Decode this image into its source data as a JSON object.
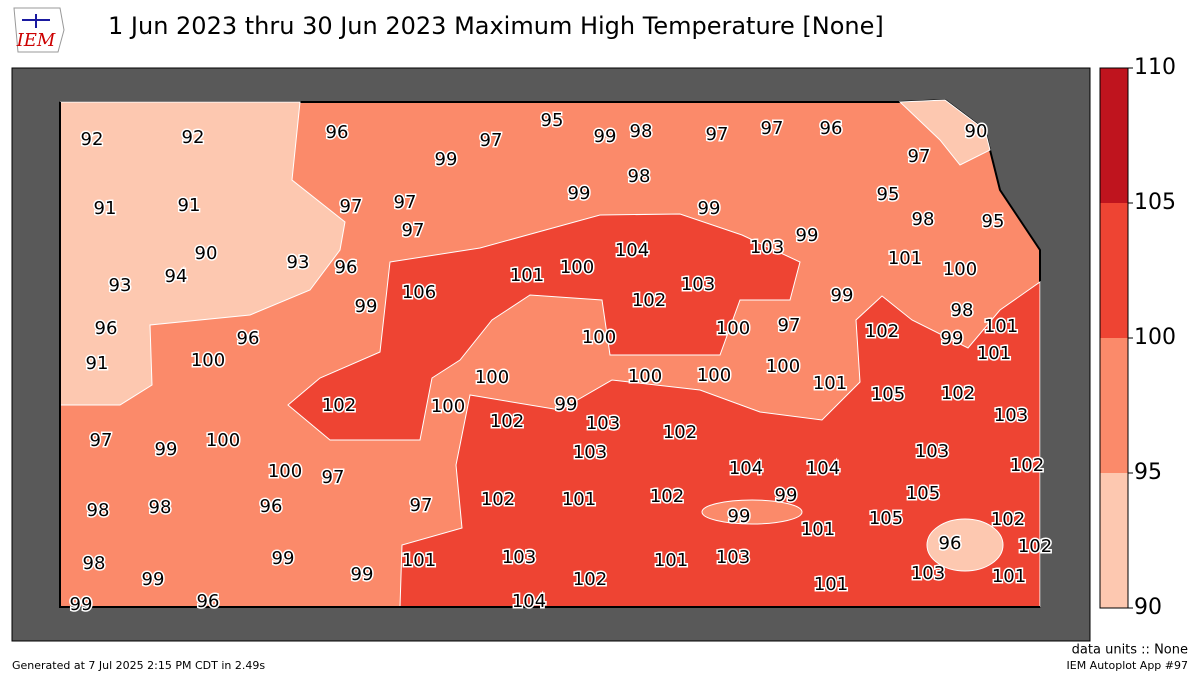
{
  "header": {
    "title": "1 Jun 2023 thru 30 Jun 2023 Maximum High Temperature [None]",
    "logo": "IEM"
  },
  "colorbar": {
    "ticks": [
      90,
      95,
      100,
      105,
      110
    ],
    "colors": [
      "#fdc8b0",
      "#fb8a6a",
      "#ee4433",
      "#bf141e"
    ]
  },
  "stations": {
    "values": [
      92,
      92,
      96,
      99,
      97,
      95,
      99,
      98,
      97,
      97,
      96,
      90,
      97,
      98,
      91,
      91,
      97,
      97,
      97,
      99,
      99,
      95,
      98,
      95,
      90,
      93,
      96,
      104,
      103,
      99,
      101,
      100,
      93,
      94,
      101,
      100,
      103,
      106,
      99,
      102,
      99,
      96,
      96,
      100,
      97,
      102,
      98,
      101,
      99,
      101,
      91,
      100,
      100,
      100,
      100,
      100,
      100,
      101,
      105,
      102,
      102,
      100,
      99,
      103,
      102,
      103,
      102,
      97,
      99,
      100,
      103,
      103,
      100,
      97,
      104,
      104,
      102,
      98,
      98,
      96,
      97,
      102,
      101,
      102,
      99,
      105,
      99,
      101,
      105,
      102,
      96,
      102,
      98,
      99,
      99,
      99,
      101,
      103,
      101,
      103,
      102,
      103,
      101,
      101,
      99,
      96,
      104
    ]
  },
  "footer": {
    "units": "data units :: None",
    "app": "IEM Autoplot App #97",
    "generated": "Generated at 7 Jul 2025 2:15 PM CDT in 2.49s"
  }
}
